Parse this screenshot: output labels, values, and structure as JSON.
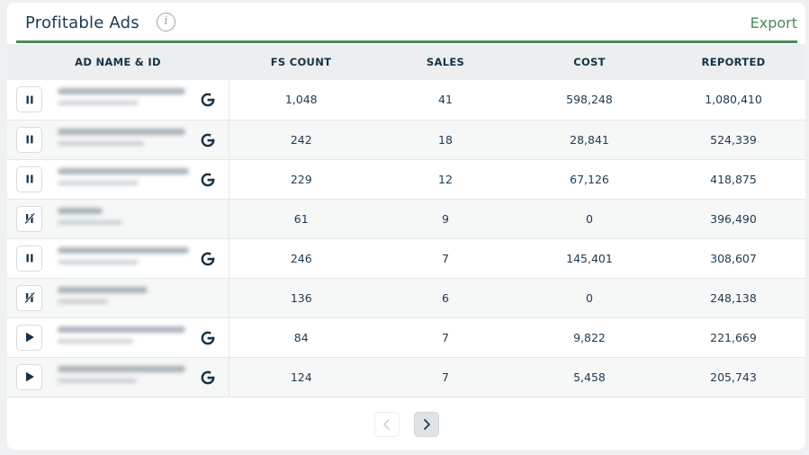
{
  "header": {
    "title": "Profitable Ads",
    "export_label": "Export"
  },
  "columns": [
    "AD NAME & ID",
    "FS COUNT",
    "SALES",
    "COST",
    "REPORTED"
  ],
  "rows": [
    {
      "status": "pause",
      "fs_count": "1,048",
      "sales": "41",
      "cost": "598,248",
      "reported": "1,080,410",
      "globe": true,
      "w1": 142,
      "w2": 90
    },
    {
      "status": "pause",
      "fs_count": "242",
      "sales": "18",
      "cost": "28,841",
      "reported": "524,339",
      "globe": true,
      "w1": 142,
      "w2": 96
    },
    {
      "status": "pause",
      "fs_count": "229",
      "sales": "12",
      "cost": "67,126",
      "reported": "418,875",
      "globe": true,
      "w1": 146,
      "w2": 90
    },
    {
      "status": "disabled",
      "fs_count": "61",
      "sales": "9",
      "cost": "0",
      "reported": "396,490",
      "globe": false,
      "w1": 50,
      "w2": 72
    },
    {
      "status": "pause",
      "fs_count": "246",
      "sales": "7",
      "cost": "145,401",
      "reported": "308,607",
      "globe": true,
      "w1": 146,
      "w2": 90
    },
    {
      "status": "disabled",
      "fs_count": "136",
      "sales": "6",
      "cost": "0",
      "reported": "248,138",
      "globe": false,
      "w1": 100,
      "w2": 56
    },
    {
      "status": "play",
      "fs_count": "84",
      "sales": "7",
      "cost": "9,822",
      "reported": "221,669",
      "globe": true,
      "w1": 142,
      "w2": 84
    },
    {
      "status": "play",
      "fs_count": "124",
      "sales": "7",
      "cost": "5,458",
      "reported": "205,743",
      "globe": true,
      "w1": 142,
      "w2": 88
    }
  ],
  "colors": {
    "accent": "#4a8a5c",
    "text": "#1e3a4f",
    "header_bg": "#eceeef"
  },
  "icons": {
    "info": "info-icon",
    "globe": "google-icon",
    "pause": "pause-icon",
    "play": "play-icon",
    "disabled": "paused-disabled-icon",
    "prev": "chevron-left-icon",
    "next": "chevron-right-icon"
  }
}
